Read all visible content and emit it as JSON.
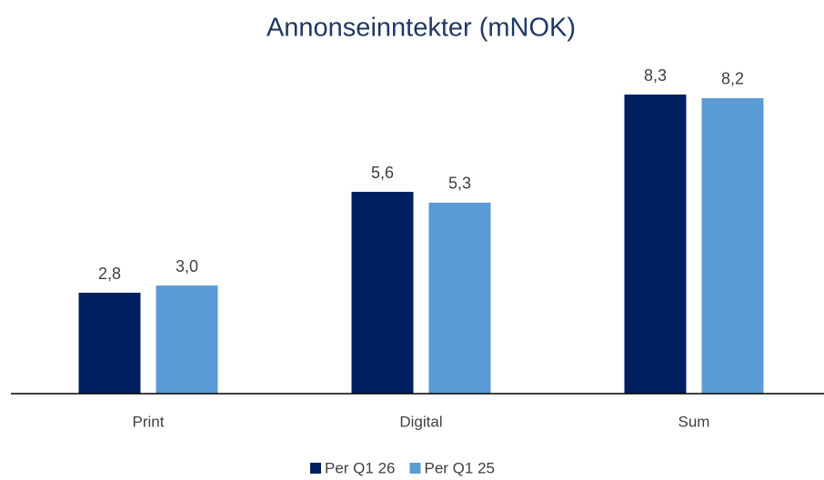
{
  "chart_data": {
    "type": "bar",
    "title": "Annonseinntekter (mNOK)",
    "categories": [
      "Print",
      "Digital",
      "Sum"
    ],
    "series": [
      {
        "name": "Per Q1 26",
        "color": "#002060",
        "values": [
          2.8,
          5.6,
          8.3
        ],
        "value_labels": [
          "2,8",
          "5,6",
          "8,3"
        ]
      },
      {
        "name": "Per Q1 25",
        "color": "#5b9bd5",
        "values": [
          3.0,
          5.3,
          8.2
        ],
        "value_labels": [
          "3,0",
          "5,3",
          "8,2"
        ]
      }
    ],
    "legend": "bottom"
  }
}
